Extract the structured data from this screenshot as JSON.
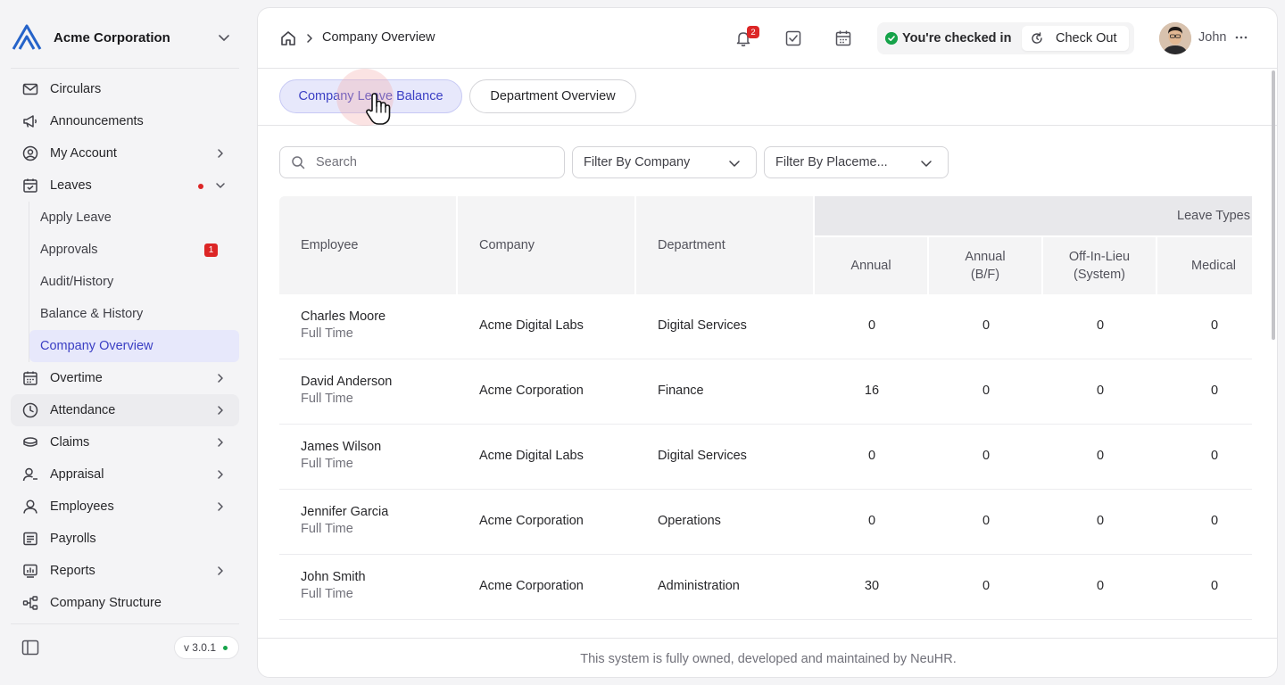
{
  "sidebar": {
    "company": "Acme Corporation",
    "nav": [
      {
        "label": "Circulars",
        "icon": "mail-icon"
      },
      {
        "label": "Announcements",
        "icon": "megaphone-icon"
      },
      {
        "label": "My Account",
        "icon": "user-circle-icon"
      },
      {
        "label": "Leaves",
        "icon": "calendar-check-icon"
      },
      {
        "label": "Overtime",
        "icon": "calendar-icon"
      },
      {
        "label": "Attendance",
        "icon": "clock-icon"
      },
      {
        "label": "Claims",
        "icon": "coins-icon"
      },
      {
        "label": "Appraisal",
        "icon": "user-star-icon"
      },
      {
        "label": "Employees",
        "icon": "user-icon"
      },
      {
        "label": "Payrolls",
        "icon": "receipt-icon"
      },
      {
        "label": "Reports",
        "icon": "chart-icon"
      },
      {
        "label": "Company Structure",
        "icon": "hierarchy-icon"
      }
    ],
    "leaves_sub": [
      {
        "label": "Apply Leave"
      },
      {
        "label": "Approvals",
        "badge": "1"
      },
      {
        "label": "Audit/History"
      },
      {
        "label": "Balance & History"
      },
      {
        "label": "Company Overview"
      }
    ],
    "version": "v 3.0.1"
  },
  "topbar": {
    "breadcrumb": "Company Overview",
    "notification_count": "2",
    "checkin_status": "You're checked in",
    "checkout_label": "Check Out",
    "user_name": "John"
  },
  "tabs": [
    {
      "label": "Company Leave Balance",
      "active": true
    },
    {
      "label": "Department Overview",
      "active": false
    }
  ],
  "filters": {
    "search_placeholder": "Search",
    "company_filter": "Filter By Company",
    "placement_filter": "Filter By Placeme..."
  },
  "table": {
    "headers": {
      "employee": "Employee",
      "company": "Company",
      "department": "Department",
      "group": "Leave Types",
      "annual": "Annual",
      "annual_bf_1": "Annual",
      "annual_bf_2": "(B/F)",
      "offinlieu_1": "Off-In-Lieu",
      "offinlieu_2": "(System)",
      "medical": "Medical"
    },
    "rows": [
      {
        "name": "Charles Moore",
        "type": "Full Time",
        "company": "Acme Digital Labs",
        "department": "Digital Services",
        "annual": "0",
        "annual_bf": "0",
        "offinlieu": "0",
        "medical": "0"
      },
      {
        "name": "David Anderson",
        "type": "Full Time",
        "company": "Acme Corporation",
        "department": "Finance",
        "annual": "16",
        "annual_bf": "0",
        "offinlieu": "0",
        "medical": "0"
      },
      {
        "name": "James Wilson",
        "type": "Full Time",
        "company": "Acme Digital Labs",
        "department": "Digital Services",
        "annual": "0",
        "annual_bf": "0",
        "offinlieu": "0",
        "medical": "0"
      },
      {
        "name": "Jennifer Garcia",
        "type": "Full Time",
        "company": "Acme Corporation",
        "department": "Operations",
        "annual": "0",
        "annual_bf": "0",
        "offinlieu": "0",
        "medical": "0"
      },
      {
        "name": "John Smith",
        "type": "Full Time",
        "company": "Acme Corporation",
        "department": "Administration",
        "annual": "30",
        "annual_bf": "0",
        "offinlieu": "0",
        "medical": "0"
      }
    ]
  },
  "footer": "This system is fully owned, developed and maintained by NeuHR.",
  "colors": {
    "accent": "#3b3fc4",
    "active_bg": "#e7e8fb",
    "badge": "#dc2626",
    "success": "#16a34a"
  }
}
